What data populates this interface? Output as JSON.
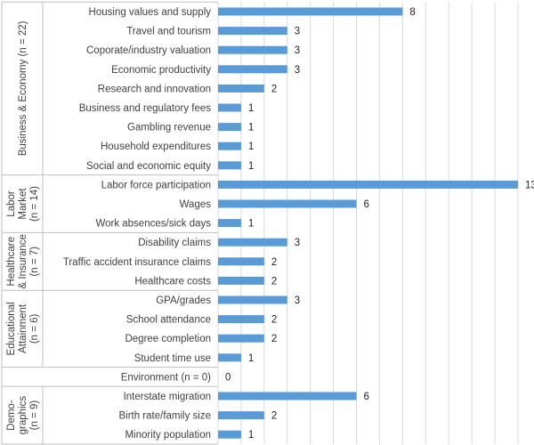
{
  "chart_data": {
    "type": "bar",
    "orientation": "horizontal",
    "bar_color": "#5b9bd5",
    "grid": true,
    "xlim": [
      0,
      13
    ],
    "groups": [
      {
        "name": "Business & Economy (n = 22)",
        "items": [
          {
            "label": "Housing values and supply",
            "value": 8
          },
          {
            "label": "Travel and tourism",
            "value": 3
          },
          {
            "label": "Coporate/industry valuation",
            "value": 3
          },
          {
            "label": "Economic productivity",
            "value": 3
          },
          {
            "label": "Research and innovation",
            "value": 2
          },
          {
            "label": "Business and regulatory fees",
            "value": 1
          },
          {
            "label": "Gambling revenue",
            "value": 1
          },
          {
            "label": "Household expenditures",
            "value": 1
          },
          {
            "label": "Social and economic equity",
            "value": 1
          }
        ]
      },
      {
        "name": "Labor Market (n = 14)",
        "name_lines": [
          "Labor",
          "Market",
          "(n = 14)"
        ],
        "items": [
          {
            "label": "Labor force participation",
            "value": 13
          },
          {
            "label": "Wages",
            "value": 6
          },
          {
            "label": "Work absences/sick days",
            "value": 1
          }
        ]
      },
      {
        "name": "Healthcare & Insurance (n = 7)",
        "name_lines": [
          "Healthcare",
          "& Insurance",
          "(n = 7)"
        ],
        "items": [
          {
            "label": "Disability claims",
            "value": 3
          },
          {
            "label": "Traffic accident insurance claims",
            "value": 2
          },
          {
            "label": "Healthcare costs",
            "value": 2
          }
        ]
      },
      {
        "name": "Educational Attainment (n = 6)",
        "name_lines": [
          "Educational",
          "Attainment",
          "(n = 6)"
        ],
        "items": [
          {
            "label": "GPA/grades",
            "value": 3
          },
          {
            "label": "School attendance",
            "value": 2
          },
          {
            "label": "Degree completion",
            "value": 2
          },
          {
            "label": "Student time use",
            "value": 1
          }
        ]
      },
      {
        "name": "",
        "items": [
          {
            "label": "Environment (n = 0)",
            "value": 0
          }
        ]
      },
      {
        "name": "Demo-graphics (n = 9)",
        "name_lines": [
          "Demo-",
          "graphics",
          "(n = 9)"
        ],
        "items": [
          {
            "label": "Interstate migration",
            "value": 6
          },
          {
            "label": "Birth rate/family size",
            "value": 2
          },
          {
            "label": "Minority population",
            "value": 1
          }
        ]
      }
    ]
  }
}
